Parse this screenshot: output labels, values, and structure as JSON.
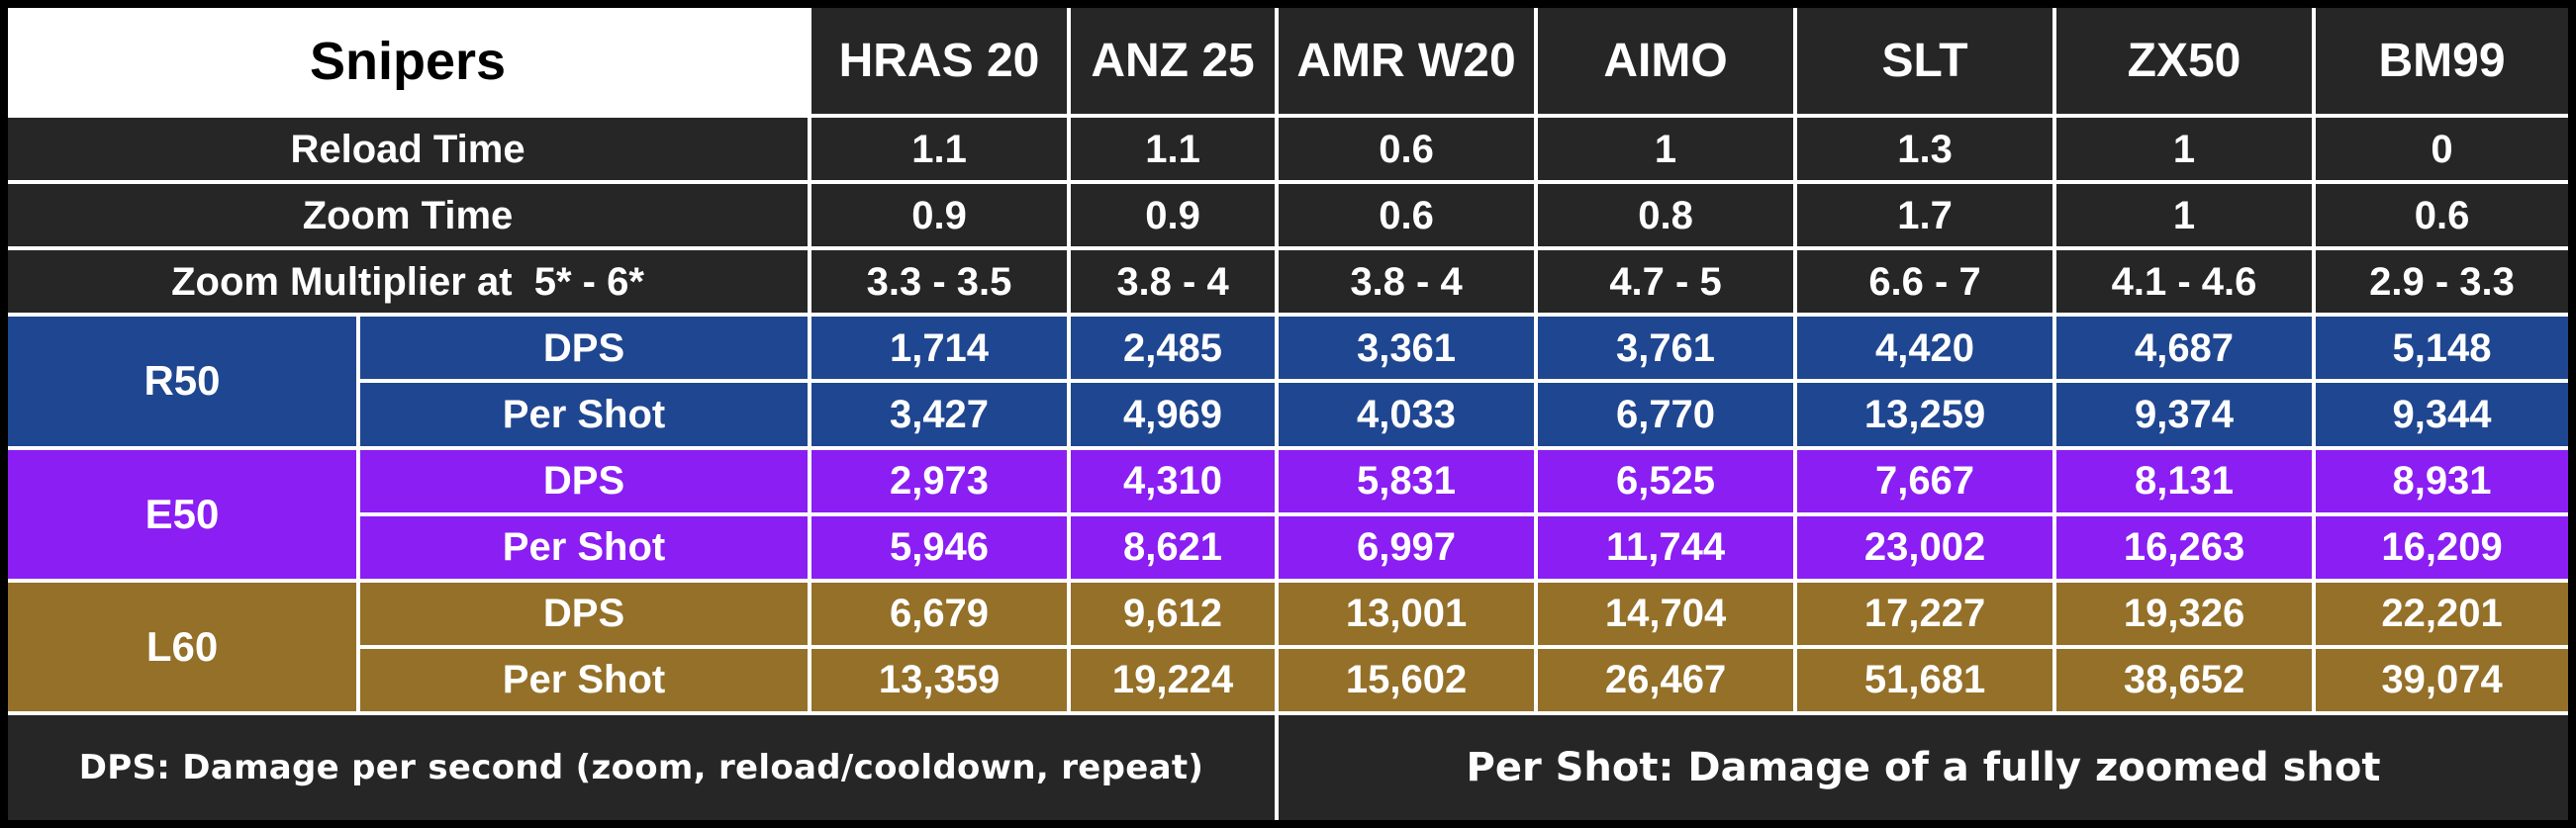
{
  "table": {
    "title": "Snipers",
    "columns": [
      "HRAS 20",
      "ANZ 25",
      "AMR W20",
      "AIMO",
      "SLT",
      "ZX50",
      "BM99"
    ],
    "stats": [
      {
        "label": "Reload Time",
        "values": [
          "1.1",
          "1.1",
          "0.6",
          "1",
          "1.3",
          "1",
          "0"
        ]
      },
      {
        "label": "Zoom Time",
        "values": [
          "0.9",
          "0.9",
          "0.6",
          "0.8",
          "1.7",
          "1",
          "0.6"
        ]
      },
      {
        "label": "Zoom Multiplier at  5* - 6*",
        "values": [
          "3.3 - 3.5",
          "3.8 - 4",
          "3.8 - 4",
          "4.7 - 5",
          "6.6 - 7",
          "4.1 - 4.6",
          "2.9 - 3.3"
        ]
      }
    ],
    "tiers": [
      {
        "name": "R50",
        "color": "#1f4690",
        "rows": [
          {
            "label": "DPS",
            "values": [
              "1,714",
              "2,485",
              "3,361",
              "3,761",
              "4,420",
              "4,687",
              "5,148"
            ]
          },
          {
            "label": "Per Shot",
            "values": [
              "3,427",
              "4,969",
              "4,033",
              "6,770",
              "13,259",
              "9,374",
              "9,344"
            ]
          }
        ]
      },
      {
        "name": "E50",
        "color": "#8b1ef2",
        "rows": [
          {
            "label": "DPS",
            "values": [
              "2,973",
              "4,310",
              "5,831",
              "6,525",
              "7,667",
              "8,131",
              "8,931"
            ]
          },
          {
            "label": "Per Shot",
            "values": [
              "5,946",
              "8,621",
              "6,997",
              "11,744",
              "23,002",
              "16,263",
              "16,209"
            ]
          }
        ]
      },
      {
        "name": "L60",
        "color": "#947028",
        "rows": [
          {
            "label": "DPS",
            "values": [
              "6,679",
              "9,612",
              "13,001",
              "14,704",
              "17,227",
              "19,326",
              "22,201"
            ]
          },
          {
            "label": "Per Shot",
            "values": [
              "13,359",
              "19,224",
              "15,602",
              "26,467",
              "51,681",
              "38,652",
              "39,074"
            ]
          }
        ]
      }
    ],
    "footnotes": {
      "dps": "DPS: Damage per second (zoom, reload/cooldown, repeat)",
      "per_shot": "Per Shot: Damage of a fully zoomed shot"
    }
  }
}
